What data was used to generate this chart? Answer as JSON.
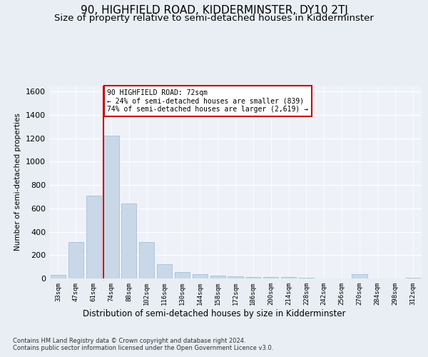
{
  "title": "90, HIGHFIELD ROAD, KIDDERMINSTER, DY10 2TJ",
  "subtitle": "Size of property relative to semi-detached houses in Kidderminster",
  "xlabel": "Distribution of semi-detached houses by size in Kidderminster",
  "ylabel": "Number of semi-detached properties",
  "footer1": "Contains HM Land Registry data © Crown copyright and database right 2024.",
  "footer2": "Contains public sector information licensed under the Open Government Licence v3.0.",
  "categories": [
    "33sqm",
    "47sqm",
    "61sqm",
    "74sqm",
    "88sqm",
    "102sqm",
    "116sqm",
    "130sqm",
    "144sqm",
    "158sqm",
    "172sqm",
    "186sqm",
    "200sqm",
    "214sqm",
    "228sqm",
    "242sqm",
    "256sqm",
    "270sqm",
    "284sqm",
    "298sqm",
    "312sqm"
  ],
  "values": [
    30,
    310,
    710,
    1220,
    640,
    310,
    120,
    55,
    35,
    25,
    20,
    15,
    10,
    10,
    5,
    0,
    0,
    35,
    0,
    0,
    5
  ],
  "bar_color": "#c8d8e8",
  "bar_edge_color": "#a0b8cc",
  "redline_index": 3,
  "redline_color": "#cc0000",
  "annotation_text": "90 HIGHFIELD ROAD: 72sqm\n← 24% of semi-detached houses are smaller (839)\n74% of semi-detached houses are larger (2,619) →",
  "annotation_box_color": "#ffffff",
  "annotation_box_edge": "#cc0000",
  "ylim": [
    0,
    1650
  ],
  "yticks": [
    0,
    200,
    400,
    600,
    800,
    1000,
    1200,
    1400,
    1600
  ],
  "bg_color": "#e8eef4",
  "plot_bg_color": "#eef2f8",
  "grid_color": "#ffffff",
  "title_fontsize": 11,
  "subtitle_fontsize": 9.5
}
